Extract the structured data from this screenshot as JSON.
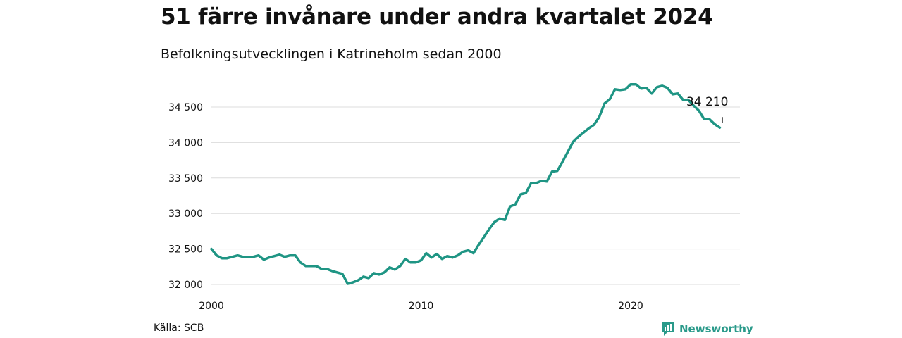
{
  "header": {
    "title": "51 färre invånare under andra kvartalet 2024",
    "subtitle": "Befolkningsutvecklingen i Katrineholm sedan 2000"
  },
  "footer": {
    "source": "Källa: SCB",
    "brand": "Newsworthy",
    "brand_icon": "newsworthy-logo-icon",
    "brand_color": "#2a9a8a"
  },
  "chart_data": {
    "type": "line",
    "title": "51 färre invånare under andra kvartalet 2024",
    "subtitle": "Befolkningsutvecklingen i Katrineholm sedan 2000",
    "xlabel": "",
    "ylabel": "",
    "x_ticks": [
      "2000",
      "2010",
      "2020"
    ],
    "y_ticks": [
      32000,
      32500,
      33000,
      33500,
      34000,
      34500
    ],
    "y_tick_labels": [
      "32 000",
      "32 500",
      "33 000",
      "33 500",
      "34 000",
      "34 500"
    ],
    "xlim": [
      2000,
      2025
    ],
    "ylim": [
      32000,
      34800
    ],
    "grid": "horizontal",
    "line_color": "#1f9584",
    "end_label": "34 210",
    "series": [
      {
        "x": [
          2000.0,
          2000.25,
          2000.5,
          2000.75,
          2001.0,
          2001.25,
          2001.5,
          2001.75,
          2002.0,
          2002.25,
          2002.5,
          2002.75,
          2003.0,
          2003.25,
          2003.5,
          2003.75,
          2004.0,
          2004.25,
          2004.5,
          2004.75,
          2005.0,
          2005.25,
          2005.5,
          2005.75,
          2006.0,
          2006.25,
          2006.5,
          2006.75,
          2007.0,
          2007.25,
          2007.5,
          2007.75,
          2008.0,
          2008.25,
          2008.5,
          2008.75,
          2009.0,
          2009.25,
          2009.5,
          2009.75,
          2010.0,
          2010.25,
          2010.5,
          2010.75,
          2011.0,
          2011.25,
          2011.5,
          2011.75,
          2012.0,
          2012.25,
          2012.5,
          2012.75,
          2013.0,
          2013.25,
          2013.5,
          2013.75,
          2014.0,
          2014.25,
          2014.5,
          2014.75,
          2015.0,
          2015.25,
          2015.5,
          2015.75,
          2016.0,
          2016.25,
          2016.5,
          2016.75,
          2017.0,
          2017.25,
          2017.5,
          2017.75,
          2018.0,
          2018.25,
          2018.5,
          2018.75,
          2019.0,
          2019.25,
          2019.5,
          2019.75,
          2020.0,
          2020.25,
          2020.5,
          2020.75,
          2021.0,
          2021.25,
          2021.5,
          2021.75,
          2022.0,
          2022.25,
          2022.5,
          2022.75,
          2023.0,
          2023.25,
          2023.5,
          2023.75,
          2024.0,
          2024.25
        ],
        "values": [
          32500,
          32410,
          32370,
          32370,
          32390,
          32410,
          32390,
          32390,
          32390,
          32410,
          32350,
          32380,
          32400,
          32420,
          32390,
          32410,
          32410,
          32310,
          32260,
          32260,
          32260,
          32220,
          32220,
          32190,
          32170,
          32150,
          32010,
          32030,
          32060,
          32110,
          32090,
          32160,
          32140,
          32170,
          32240,
          32210,
          32260,
          32360,
          32310,
          32310,
          32340,
          32440,
          32380,
          32430,
          32360,
          32400,
          32380,
          32410,
          32460,
          32480,
          32440,
          32560,
          32670,
          32780,
          32880,
          32930,
          32910,
          33100,
          33130,
          33270,
          33290,
          33430,
          33430,
          33460,
          33450,
          33590,
          33600,
          33730,
          33870,
          34010,
          34080,
          34140,
          34200,
          34250,
          34360,
          34550,
          34610,
          34750,
          34740,
          34750,
          34820,
          34820,
          34760,
          34770,
          34690,
          34780,
          34800,
          34770,
          34680,
          34690,
          34600,
          34600,
          34520,
          34450,
          34330,
          34330,
          34260,
          34210
        ]
      }
    ]
  }
}
